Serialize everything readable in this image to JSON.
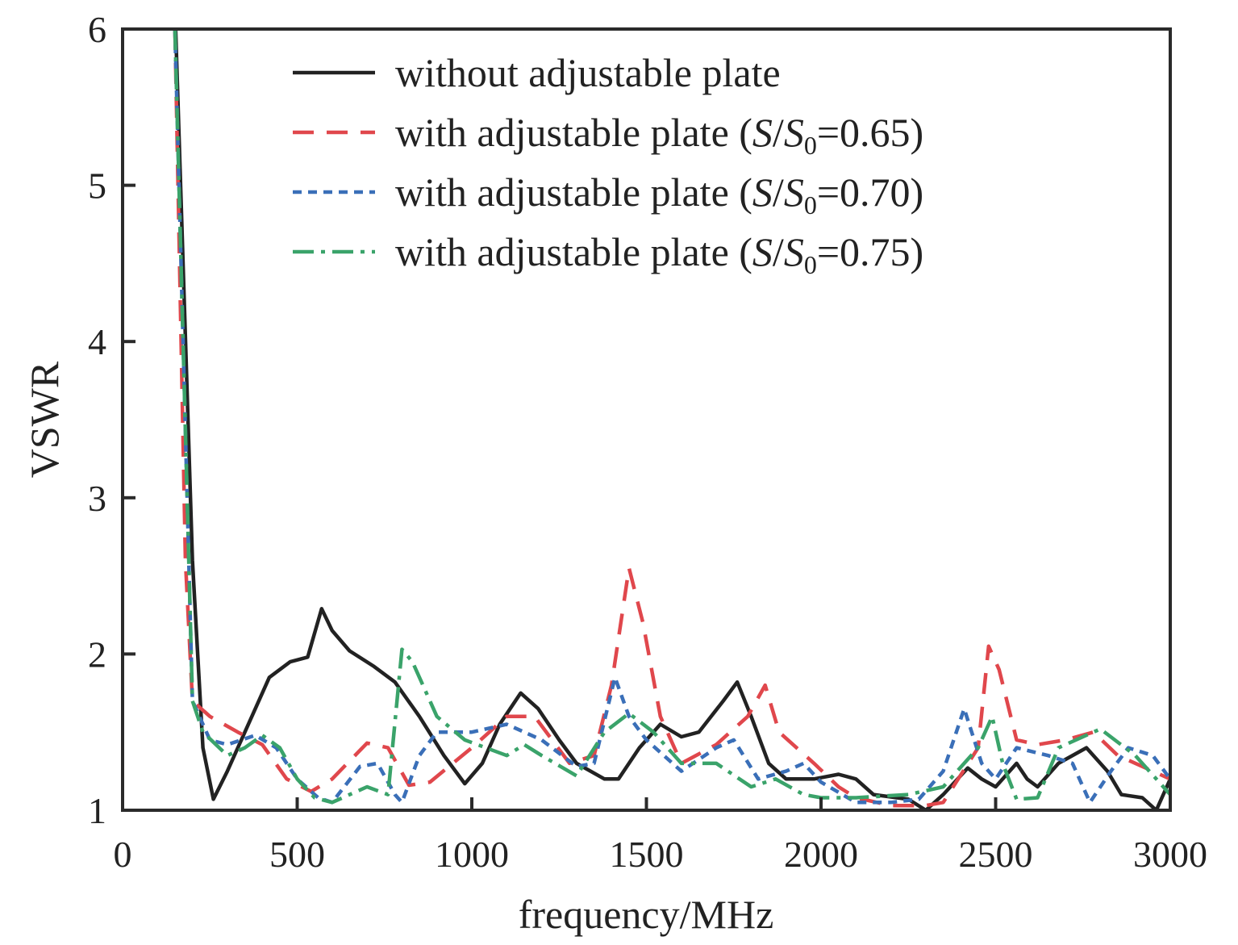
{
  "chart_data": {
    "type": "line",
    "xlabel": "frequency/MHz",
    "ylabel": "VSWR",
    "xlim": [
      0,
      3000
    ],
    "ylim": [
      1,
      6
    ],
    "xticks": [
      "0",
      "500",
      "1000",
      "1500",
      "2000",
      "2500",
      "3000"
    ],
    "yticks": [
      "1",
      "2",
      "3",
      "4",
      "5",
      "6"
    ],
    "grid": false,
    "legend_position": "top-right",
    "series": [
      {
        "name": "without adjustable plate",
        "legend": {
          "prefix": "without adjustable plate",
          "var": "",
          "sub": "",
          "suffix": ""
        },
        "color": "#222222",
        "dash": "",
        "points": [
          [
            152,
            6
          ],
          [
            200,
            2.6
          ],
          [
            230,
            1.4
          ],
          [
            260,
            1.07
          ],
          [
            300,
            1.25
          ],
          [
            350,
            1.5
          ],
          [
            420,
            1.85
          ],
          [
            480,
            1.95
          ],
          [
            530,
            1.98
          ],
          [
            570,
            2.29
          ],
          [
            600,
            2.15
          ],
          [
            650,
            2.02
          ],
          [
            720,
            1.92
          ],
          [
            780,
            1.82
          ],
          [
            850,
            1.6
          ],
          [
            920,
            1.35
          ],
          [
            980,
            1.17
          ],
          [
            1030,
            1.3
          ],
          [
            1080,
            1.55
          ],
          [
            1140,
            1.75
          ],
          [
            1190,
            1.65
          ],
          [
            1250,
            1.45
          ],
          [
            1300,
            1.3
          ],
          [
            1380,
            1.2
          ],
          [
            1420,
            1.2
          ],
          [
            1480,
            1.4
          ],
          [
            1540,
            1.55
          ],
          [
            1600,
            1.47
          ],
          [
            1650,
            1.5
          ],
          [
            1720,
            1.7
          ],
          [
            1760,
            1.82
          ],
          [
            1800,
            1.6
          ],
          [
            1850,
            1.3
          ],
          [
            1900,
            1.2
          ],
          [
            1980,
            1.2
          ],
          [
            2050,
            1.23
          ],
          [
            2100,
            1.2
          ],
          [
            2150,
            1.1
          ],
          [
            2250,
            1.07
          ],
          [
            2300,
            1.0
          ],
          [
            2350,
            1.1
          ],
          [
            2420,
            1.27
          ],
          [
            2460,
            1.2
          ],
          [
            2500,
            1.15
          ],
          [
            2560,
            1.3
          ],
          [
            2590,
            1.2
          ],
          [
            2620,
            1.15
          ],
          [
            2680,
            1.3
          ],
          [
            2760,
            1.4
          ],
          [
            2820,
            1.25
          ],
          [
            2860,
            1.1
          ],
          [
            2920,
            1.08
          ],
          [
            2960,
            1.0
          ],
          [
            3000,
            1.2
          ]
        ]
      },
      {
        "name": "with adjustable plate (S/S0=0.65)",
        "legend": {
          "prefix": "with adjustable plate (",
          "var": "S",
          "sub": "0",
          "suffix": "=0.65)"
        },
        "color": "#e0474c",
        "dash": "26,16",
        "points": [
          [
            150,
            6
          ],
          [
            180,
            2.6
          ],
          [
            200,
            1.7
          ],
          [
            250,
            1.6
          ],
          [
            330,
            1.5
          ],
          [
            400,
            1.42
          ],
          [
            470,
            1.2
          ],
          [
            540,
            1.12
          ],
          [
            600,
            1.2
          ],
          [
            700,
            1.43
          ],
          [
            760,
            1.4
          ],
          [
            820,
            1.16
          ],
          [
            880,
            1.18
          ],
          [
            1000,
            1.4
          ],
          [
            1100,
            1.6
          ],
          [
            1180,
            1.6
          ],
          [
            1280,
            1.3
          ],
          [
            1350,
            1.35
          ],
          [
            1400,
            1.8
          ],
          [
            1450,
            2.55
          ],
          [
            1490,
            2.2
          ],
          [
            1540,
            1.6
          ],
          [
            1600,
            1.3
          ],
          [
            1700,
            1.42
          ],
          [
            1790,
            1.6
          ],
          [
            1840,
            1.8
          ],
          [
            1880,
            1.5
          ],
          [
            1980,
            1.3
          ],
          [
            2050,
            1.15
          ],
          [
            2100,
            1.08
          ],
          [
            2200,
            1.03
          ],
          [
            2300,
            1.03
          ],
          [
            2350,
            1.05
          ],
          [
            2450,
            1.4
          ],
          [
            2480,
            2.05
          ],
          [
            2510,
            1.9
          ],
          [
            2560,
            1.45
          ],
          [
            2620,
            1.42
          ],
          [
            2700,
            1.45
          ],
          [
            2780,
            1.5
          ],
          [
            2850,
            1.35
          ],
          [
            2950,
            1.25
          ],
          [
            3000,
            1.2
          ]
        ]
      },
      {
        "name": "with adjustable plate (S/S0=0.70)",
        "legend": {
          "prefix": "with adjustable plate (",
          "var": "S",
          "sub": "0",
          "suffix": "=0.70)"
        },
        "color": "#3a6fb8",
        "dash": "11,8",
        "points": [
          [
            150,
            6
          ],
          [
            200,
            1.7
          ],
          [
            250,
            1.45
          ],
          [
            300,
            1.42
          ],
          [
            380,
            1.48
          ],
          [
            440,
            1.4
          ],
          [
            500,
            1.2
          ],
          [
            560,
            1.08
          ],
          [
            600,
            1.05
          ],
          [
            680,
            1.28
          ],
          [
            730,
            1.3
          ],
          [
            780,
            1.1
          ],
          [
            800,
            1.05
          ],
          [
            850,
            1.35
          ],
          [
            900,
            1.5
          ],
          [
            1000,
            1.5
          ],
          [
            1100,
            1.55
          ],
          [
            1200,
            1.45
          ],
          [
            1300,
            1.28
          ],
          [
            1350,
            1.3
          ],
          [
            1410,
            1.85
          ],
          [
            1450,
            1.6
          ],
          [
            1500,
            1.45
          ],
          [
            1600,
            1.25
          ],
          [
            1700,
            1.4
          ],
          [
            1750,
            1.45
          ],
          [
            1820,
            1.2
          ],
          [
            1900,
            1.25
          ],
          [
            1950,
            1.3
          ],
          [
            2000,
            1.18
          ],
          [
            2100,
            1.05
          ],
          [
            2200,
            1.05
          ],
          [
            2280,
            1.07
          ],
          [
            2350,
            1.25
          ],
          [
            2410,
            1.65
          ],
          [
            2460,
            1.3
          ],
          [
            2500,
            1.2
          ],
          [
            2560,
            1.4
          ],
          [
            2650,
            1.35
          ],
          [
            2720,
            1.3
          ],
          [
            2770,
            1.05
          ],
          [
            2830,
            1.25
          ],
          [
            2880,
            1.4
          ],
          [
            2950,
            1.35
          ],
          [
            3000,
            1.2
          ]
        ]
      },
      {
        "name": "with adjustable plate (S/S0=0.75)",
        "legend": {
          "prefix": "with adjustable plate (",
          "var": "S",
          "sub": "0",
          "suffix": "=0.75)"
        },
        "color": "#3aa36a",
        "dash": "26,9,5,9",
        "points": [
          [
            150,
            6
          ],
          [
            200,
            1.7
          ],
          [
            230,
            1.5
          ],
          [
            300,
            1.35
          ],
          [
            350,
            1.4
          ],
          [
            400,
            1.48
          ],
          [
            450,
            1.4
          ],
          [
            500,
            1.2
          ],
          [
            550,
            1.08
          ],
          [
            600,
            1.05
          ],
          [
            700,
            1.15
          ],
          [
            760,
            1.1
          ],
          [
            800,
            2.03
          ],
          [
            830,
            1.95
          ],
          [
            900,
            1.6
          ],
          [
            980,
            1.45
          ],
          [
            1100,
            1.35
          ],
          [
            1150,
            1.42
          ],
          [
            1200,
            1.35
          ],
          [
            1300,
            1.22
          ],
          [
            1380,
            1.5
          ],
          [
            1450,
            1.62
          ],
          [
            1520,
            1.5
          ],
          [
            1600,
            1.3
          ],
          [
            1700,
            1.3
          ],
          [
            1800,
            1.15
          ],
          [
            1870,
            1.2
          ],
          [
            1950,
            1.1
          ],
          [
            2000,
            1.08
          ],
          [
            2100,
            1.08
          ],
          [
            2250,
            1.1
          ],
          [
            2350,
            1.15
          ],
          [
            2450,
            1.4
          ],
          [
            2490,
            1.6
          ],
          [
            2520,
            1.3
          ],
          [
            2560,
            1.07
          ],
          [
            2620,
            1.08
          ],
          [
            2680,
            1.4
          ],
          [
            2800,
            1.52
          ],
          [
            2900,
            1.35
          ],
          [
            3000,
            1.1
          ]
        ]
      }
    ]
  }
}
